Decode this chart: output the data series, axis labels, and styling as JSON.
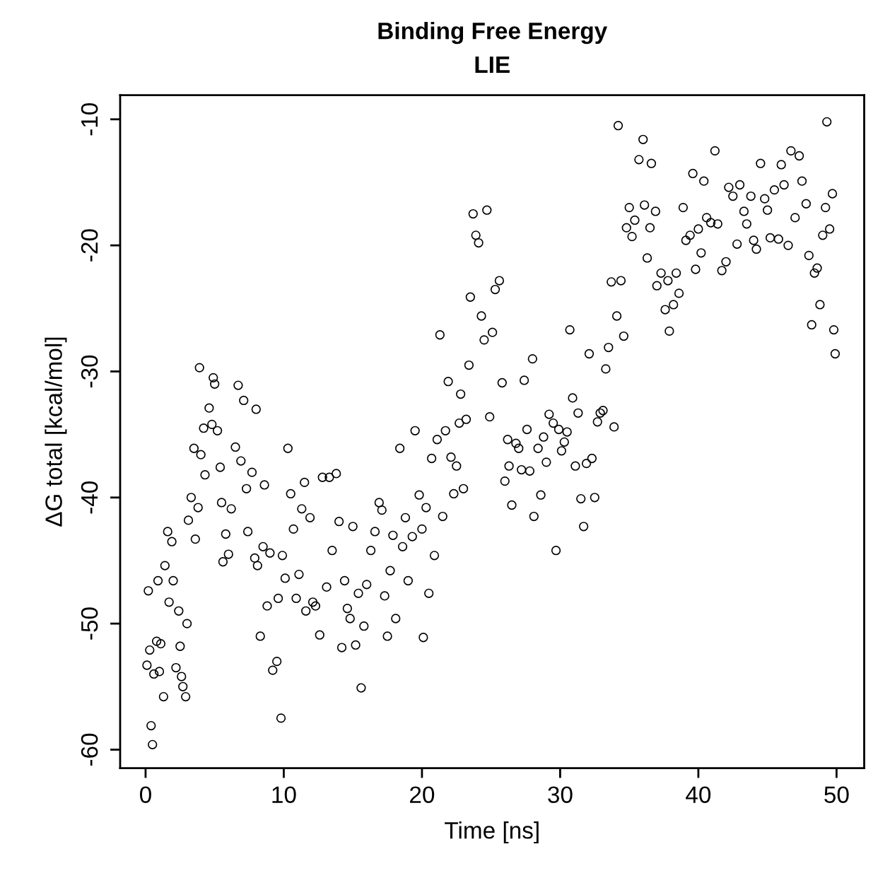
{
  "chart_data": {
    "type": "scatter",
    "title": "Binding Free Energy",
    "subtitle": "LIE",
    "xlabel": "Time [ns]",
    "ylabel": "ΔG total [kcal/mol]",
    "xlim": [
      -1.84,
      52.0
    ],
    "ylim": [
      -61.46,
      -8.09
    ],
    "xticks": [
      0,
      10,
      20,
      30,
      40,
      50
    ],
    "yticks": [
      -60,
      -50,
      -40,
      -30,
      -20,
      -10
    ],
    "grid": false,
    "marker": "circle",
    "x": [
      0.1,
      0.2,
      0.3,
      0.4,
      0.5,
      0.6,
      0.8,
      0.9,
      1.0,
      1.1,
      1.3,
      1.4,
      1.6,
      1.7,
      1.9,
      2.0,
      2.2,
      2.4,
      2.5,
      2.6,
      2.7,
      2.9,
      3.0,
      3.1,
      3.3,
      3.5,
      3.6,
      3.8,
      3.9,
      4.0,
      4.2,
      4.3,
      4.6,
      4.8,
      4.9,
      5.0,
      5.2,
      5.4,
      5.5,
      5.6,
      5.8,
      6.0,
      6.2,
      6.5,
      6.7,
      6.9,
      7.1,
      7.3,
      7.4,
      7.7,
      7.9,
      8.0,
      8.1,
      8.3,
      8.5,
      8.6,
      8.8,
      9.0,
      9.2,
      9.5,
      9.6,
      9.8,
      9.9,
      10.1,
      10.3,
      10.5,
      10.7,
      10.9,
      11.1,
      11.3,
      11.5,
      11.6,
      11.9,
      12.1,
      12.3,
      12.6,
      12.8,
      13.1,
      13.3,
      13.5,
      13.8,
      14.0,
      14.2,
      14.4,
      14.6,
      14.8,
      15.0,
      15.2,
      15.4,
      15.6,
      15.8,
      16.0,
      16.3,
      16.6,
      16.9,
      17.1,
      17.3,
      17.5,
      17.7,
      17.9,
      18.1,
      18.4,
      18.6,
      18.8,
      19.0,
      19.3,
      19.5,
      19.8,
      20.0,
      20.1,
      20.3,
      20.5,
      20.7,
      20.9,
      21.1,
      21.3,
      21.5,
      21.7,
      21.9,
      22.1,
      22.3,
      22.5,
      22.7,
      22.8,
      23.0,
      23.2,
      23.4,
      23.5,
      23.7,
      23.9,
      24.1,
      24.3,
      24.5,
      24.7,
      24.9,
      25.1,
      25.3,
      25.6,
      25.8,
      26.0,
      26.2,
      26.3,
      26.5,
      26.8,
      27.0,
      27.2,
      27.4,
      27.6,
      27.8,
      28.0,
      28.1,
      28.4,
      28.6,
      28.8,
      29.0,
      29.2,
      29.5,
      29.7,
      29.9,
      30.1,
      30.3,
      30.5,
      30.7,
      30.9,
      31.1,
      31.3,
      31.5,
      31.7,
      31.9,
      32.1,
      32.3,
      32.5,
      32.7,
      32.9,
      33.1,
      33.3,
      33.5,
      33.7,
      33.9,
      34.1,
      34.2,
      34.4,
      34.6,
      34.8,
      35.0,
      35.2,
      35.4,
      35.7,
      36.0,
      36.1,
      36.3,
      36.5,
      36.6,
      36.9,
      37.0,
      37.3,
      37.6,
      37.8,
      37.9,
      38.2,
      38.4,
      38.6,
      38.9,
      39.1,
      39.4,
      39.6,
      39.8,
      40.0,
      40.2,
      40.4,
      40.6,
      40.9,
      41.2,
      41.4,
      41.7,
      42.0,
      42.2,
      42.5,
      42.8,
      43.0,
      43.3,
      43.5,
      43.8,
      44.0,
      44.2,
      44.5,
      44.8,
      45.0,
      45.2,
      45.5,
      45.8,
      46.0,
      46.2,
      46.5,
      46.7,
      47.0,
      47.3,
      47.5,
      47.8,
      48.0,
      48.2,
      48.4,
      48.6,
      48.8,
      49.0,
      49.2,
      49.3,
      49.5,
      49.7,
      49.8,
      49.9
    ],
    "series": [
      {
        "color": "#000000",
        "values": [
          -53.3,
          -47.4,
          -52.1,
          -58.1,
          -59.6,
          -54.0,
          -51.4,
          -46.6,
          -53.8,
          -51.6,
          -55.8,
          -45.4,
          -42.7,
          -48.3,
          -43.5,
          -46.6,
          -53.5,
          -49.0,
          -51.8,
          -54.2,
          -55.0,
          -55.8,
          -50.0,
          -41.8,
          -40.0,
          -36.1,
          -43.3,
          -40.8,
          -29.7,
          -36.6,
          -34.5,
          -38.2,
          -32.9,
          -34.2,
          -30.5,
          -31.0,
          -34.7,
          -37.6,
          -40.4,
          -45.1,
          -42.9,
          -44.5,
          -40.9,
          -36.0,
          -31.1,
          -37.1,
          -32.3,
          -39.3,
          -42.7,
          -38.0,
          -44.8,
          -33.0,
          -45.4,
          -51.0,
          -43.9,
          -39.0,
          -48.6,
          -44.4,
          -53.7,
          -53.0,
          -48.0,
          -57.5,
          -44.6,
          -46.4,
          -36.1,
          -39.7,
          -42.5,
          -48.0,
          -46.1,
          -40.9,
          -38.8,
          -49.0,
          -41.6,
          -48.3,
          -48.6,
          -50.9,
          -38.4,
          -47.1,
          -38.4,
          -44.2,
          -38.1,
          -41.9,
          -51.9,
          -46.6,
          -48.8,
          -49.6,
          -42.3,
          -51.7,
          -47.6,
          -55.1,
          -50.2,
          -46.9,
          -44.2,
          -42.7,
          -40.4,
          -41.0,
          -47.8,
          -51.0,
          -45.8,
          -43.0,
          -49.6,
          -36.1,
          -43.9,
          -41.6,
          -46.6,
          -43.1,
          -34.7,
          -39.8,
          -42.5,
          -51.1,
          -40.8,
          -47.6,
          -36.9,
          -44.6,
          -35.4,
          -27.1,
          -41.5,
          -34.7,
          -30.8,
          -36.8,
          -39.7,
          -37.5,
          -34.1,
          -31.8,
          -39.3,
          -33.8,
          -29.5,
          -24.1,
          -17.5,
          -19.2,
          -19.8,
          -25.6,
          -27.5,
          -17.2,
          -33.6,
          -26.9,
          -23.5,
          -22.8,
          -30.9,
          -38.7,
          -35.4,
          -37.5,
          -40.6,
          -35.7,
          -36.1,
          -37.8,
          -30.7,
          -34.6,
          -37.9,
          -29.0,
          -41.5,
          -36.1,
          -39.8,
          -35.2,
          -37.2,
          -33.4,
          -34.1,
          -44.2,
          -34.6,
          -36.3,
          -35.6,
          -34.8,
          -26.7,
          -32.1,
          -37.5,
          -33.3,
          -40.1,
          -42.3,
          -37.3,
          -28.6,
          -36.9,
          -40.0,
          -34.0,
          -33.3,
          -33.1,
          -29.8,
          -28.1,
          -22.9,
          -34.4,
          -25.6,
          -10.5,
          -22.8,
          -27.2,
          -18.6,
          -17.0,
          -19.3,
          -18.0,
          -13.2,
          -11.6,
          -16.8,
          -21.0,
          -18.6,
          -13.5,
          -17.3,
          -23.2,
          -22.2,
          -25.1,
          -22.8,
          -26.8,
          -24.7,
          -22.2,
          -23.8,
          -17.0,
          -19.6,
          -19.2,
          -14.3,
          -21.9,
          -18.7,
          -20.6,
          -14.9,
          -17.8,
          -18.2,
          -12.5,
          -18.3,
          -22.0,
          -21.3,
          -15.4,
          -16.1,
          -19.9,
          -15.2,
          -17.3,
          -18.3,
          -16.1,
          -19.6,
          -20.3,
          -13.5,
          -16.3,
          -17.2,
          -19.4,
          -15.6,
          -19.5,
          -13.6,
          -15.2,
          -20.0,
          -12.5,
          -17.8,
          -12.9,
          -14.9,
          -16.7,
          -20.8,
          -26.3,
          -22.2,
          -21.8,
          -24.7,
          -19.2,
          -17.0,
          -10.2,
          -18.7,
          -15.9,
          -26.7,
          -28.6
        ]
      }
    ]
  }
}
